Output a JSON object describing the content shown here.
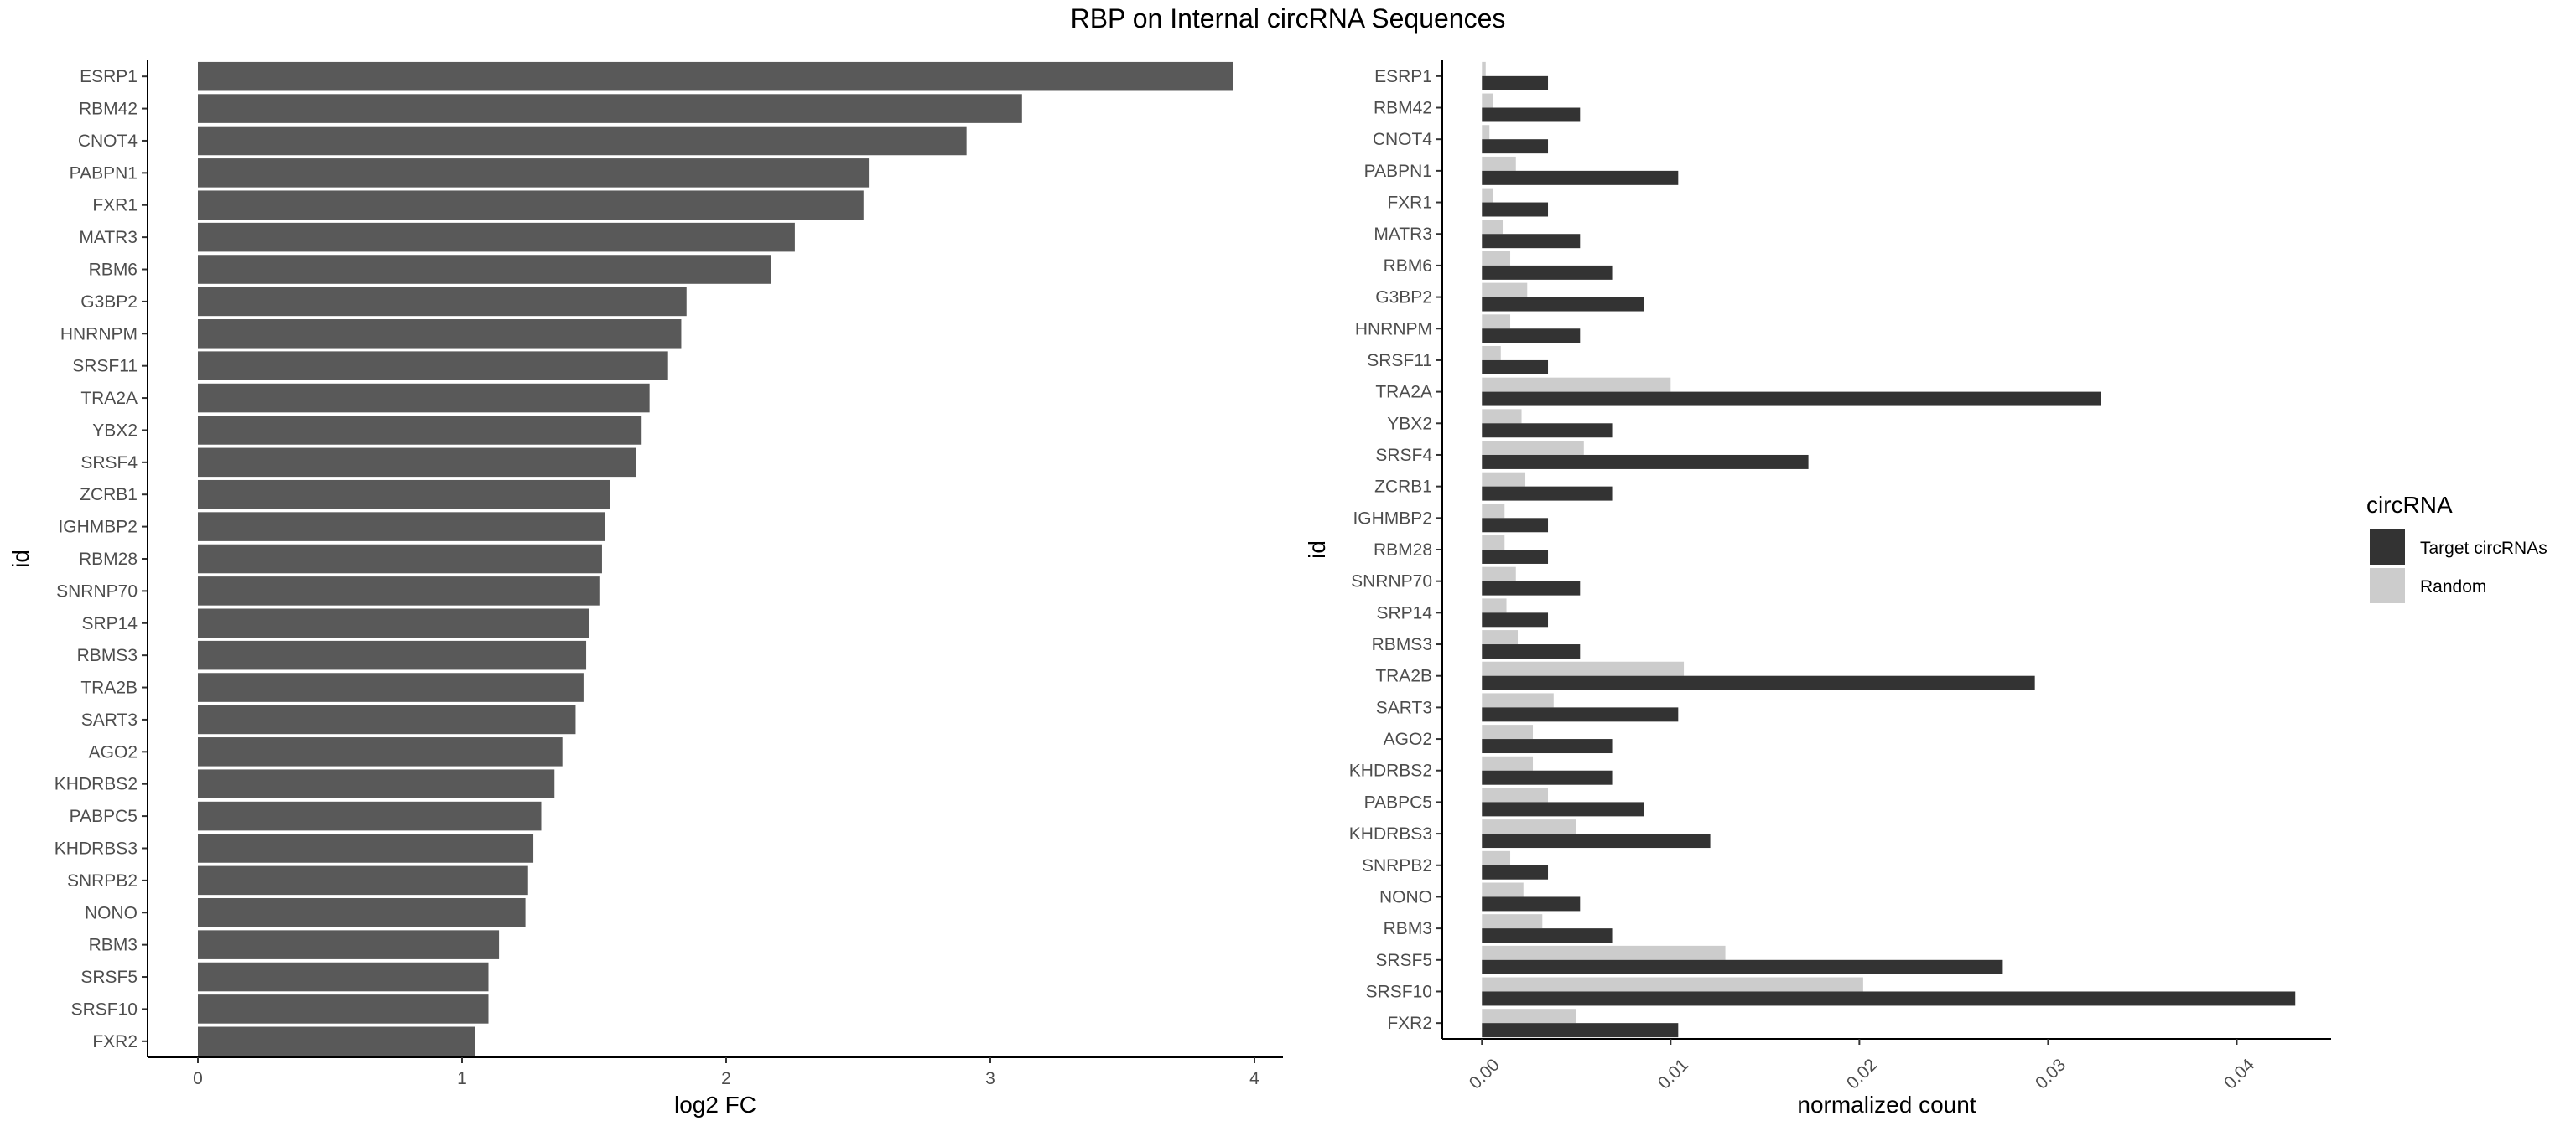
{
  "title": "RBP on Internal circRNA Sequences",
  "chart_data": [
    {
      "type": "bar",
      "orientation": "horizontal",
      "categories": [
        "ESRP1",
        "RBM42",
        "CNOT4",
        "PABPN1",
        "FXR1",
        "MATR3",
        "RBM6",
        "G3BP2",
        "HNRNPM",
        "SRSF11",
        "TRA2A",
        "YBX2",
        "SRSF4",
        "ZCRB1",
        "IGHMBP2",
        "RBM28",
        "SNRNP70",
        "SRP14",
        "RBMS3",
        "TRA2B",
        "SART3",
        "AGO2",
        "KHDRBS2",
        "PABPC5",
        "KHDRBS3",
        "SNRPB2",
        "NONO",
        "RBM3",
        "SRSF5",
        "SRSF10",
        "FXR2"
      ],
      "values": [
        3.92,
        3.12,
        2.91,
        2.54,
        2.52,
        2.26,
        2.17,
        1.85,
        1.83,
        1.78,
        1.71,
        1.68,
        1.66,
        1.56,
        1.54,
        1.53,
        1.52,
        1.48,
        1.47,
        1.46,
        1.43,
        1.38,
        1.35,
        1.3,
        1.27,
        1.25,
        1.24,
        1.14,
        1.1,
        1.1,
        1.05
      ],
      "xlabel": "log2 FC",
      "ylabel": "id",
      "xlim": [
        0,
        4.1
      ],
      "xticks": [
        "0",
        "1",
        "2",
        "3",
        "4"
      ],
      "colors": {
        "bar": "#595959"
      },
      "grid": false
    },
    {
      "type": "bar",
      "orientation": "horizontal",
      "grouped": true,
      "categories": [
        "ESRP1",
        "RBM42",
        "CNOT4",
        "PABPN1",
        "FXR1",
        "MATR3",
        "RBM6",
        "G3BP2",
        "HNRNPM",
        "SRSF11",
        "TRA2A",
        "YBX2",
        "SRSF4",
        "ZCRB1",
        "IGHMBP2",
        "RBM28",
        "SNRNP70",
        "SRP14",
        "RBMS3",
        "TRA2B",
        "SART3",
        "AGO2",
        "KHDRBS2",
        "PABPC5",
        "KHDRBS3",
        "SNRPB2",
        "NONO",
        "RBM3",
        "SRSF5",
        "SRSF10",
        "FXR2"
      ],
      "series": [
        {
          "name": "Target circRNAs",
          "color": "#333333",
          "values": [
            0.0035,
            0.0052,
            0.0035,
            0.0104,
            0.0035,
            0.0052,
            0.0069,
            0.0086,
            0.0052,
            0.0035,
            0.0328,
            0.0069,
            0.0173,
            0.0069,
            0.0035,
            0.0035,
            0.0052,
            0.0035,
            0.0052,
            0.0293,
            0.0104,
            0.0069,
            0.0069,
            0.0086,
            0.0121,
            0.0035,
            0.0052,
            0.0069,
            0.0276,
            0.0431,
            0.0104
          ]
        },
        {
          "name": "Random",
          "color": "#cccccc",
          "values": [
            0.0002,
            0.0006,
            0.0004,
            0.0018,
            0.0006,
            0.0011,
            0.0015,
            0.0024,
            0.0015,
            0.001,
            0.01,
            0.0021,
            0.0054,
            0.0023,
            0.0012,
            0.0012,
            0.0018,
            0.0013,
            0.0019,
            0.0107,
            0.0038,
            0.0027,
            0.0027,
            0.0035,
            0.005,
            0.0015,
            0.0022,
            0.0032,
            0.0129,
            0.0202,
            0.005
          ]
        }
      ],
      "xlabel": "normalized count",
      "ylabel": "id",
      "xlim": [
        -0.0021,
        0.045
      ],
      "xticks": [
        "0.00",
        "0.01",
        "0.02",
        "0.03",
        "0.04"
      ],
      "legend": {
        "title": "circRNA",
        "position": "right"
      },
      "grid": false
    }
  ]
}
